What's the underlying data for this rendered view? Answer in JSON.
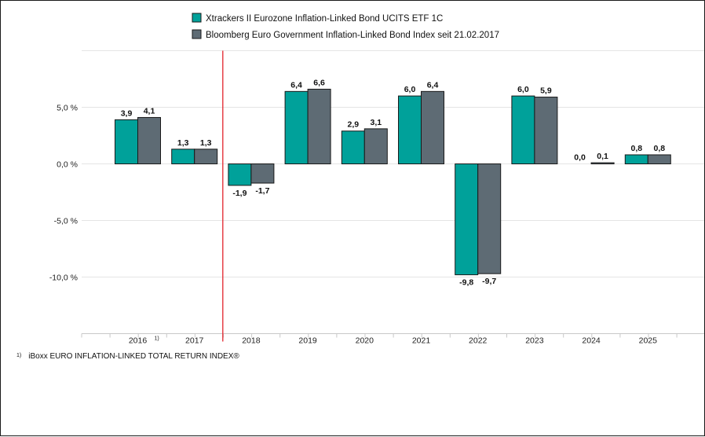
{
  "chart_data": {
    "type": "bar",
    "categories": [
      "2016",
      "2017",
      "2018",
      "2019",
      "2020",
      "2021",
      "2022",
      "2023",
      "2024",
      "2025"
    ],
    "category_footnote_marks": {
      "2016": "1)"
    },
    "series": [
      {
        "name": "Xtrackers II Eurozone Inflation-Linked Bond UCITS ETF 1C",
        "color": "#00A19A",
        "values": [
          3.9,
          1.3,
          -1.9,
          6.4,
          2.9,
          6.0,
          -9.8,
          6.0,
          0.0,
          0.8
        ],
        "labels": [
          "3,9",
          "1,3",
          "-1,9",
          "6,4",
          "2,9",
          "6,0",
          "-9,8",
          "6,0",
          "0,0",
          "0,8"
        ]
      },
      {
        "name": "Bloomberg Euro Government Inflation-Linked Bond Index seit 21.02.2017",
        "color": "#5E6B74",
        "values": [
          4.1,
          1.3,
          -1.7,
          6.6,
          3.1,
          6.4,
          -9.7,
          5.9,
          0.1,
          0.8
        ],
        "labels": [
          "4,1",
          "1,3",
          "-1,7",
          "6,6",
          "3,1",
          "6,4",
          "-9,7",
          "5,9",
          "0,1",
          "0,8"
        ]
      }
    ],
    "yticks": [
      5.0,
      0.0,
      -5.0,
      -10.0
    ],
    "ytick_labels": [
      "5,0 %",
      "0,0 %",
      "-5,0 %",
      "-10,0 %"
    ],
    "ylim": [
      -15.0,
      10.0
    ],
    "grid": true,
    "legend_position": "top",
    "marker_line": {
      "between": [
        "2017",
        "2018"
      ],
      "color": "#E3232C"
    },
    "title": "",
    "xlabel": "",
    "ylabel": ""
  },
  "footnote": {
    "mark": "1)",
    "text": "iBoxx EURO INFLATION-LINKED TOTAL RETURN INDEX®"
  }
}
